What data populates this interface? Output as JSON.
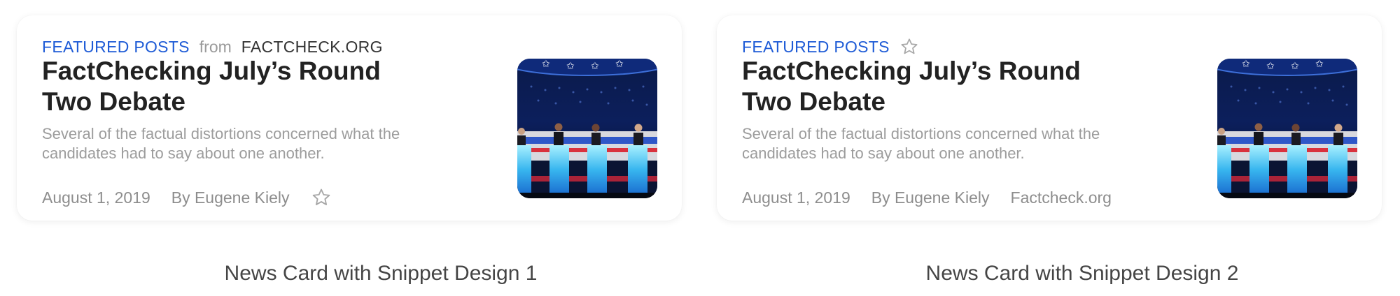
{
  "colors": {
    "accent": "#1e5bd6",
    "headline": "#222222",
    "muted": "#8d8d8d"
  },
  "card1": {
    "category": "FEATURED POSTS",
    "from_label": "from",
    "source": "FACTCHECK.ORG",
    "headline": "FactChecking July’s Round Two Debate",
    "snippet": "Several of the factual distortions concerned what the candidates had to say about one another.",
    "date": "August 1, 2019",
    "author": "By Eugene Kiely",
    "bookmark_icon": "star-outline-icon",
    "thumbnail": "debate-stage-image"
  },
  "card2": {
    "category": "FEATURED POSTS",
    "bookmark_icon": "star-outline-icon",
    "headline": "FactChecking July’s Round Two Debate",
    "snippet": "Several of the factual distortions concerned what the candidates had to say about one another.",
    "date": "August 1, 2019",
    "author": "By Eugene Kiely",
    "source": "Factcheck.org",
    "thumbnail": "debate-stage-image"
  },
  "captions": {
    "design1": "News Card with Snippet Design 1",
    "design2": "News Card with Snippet Design 2"
  }
}
